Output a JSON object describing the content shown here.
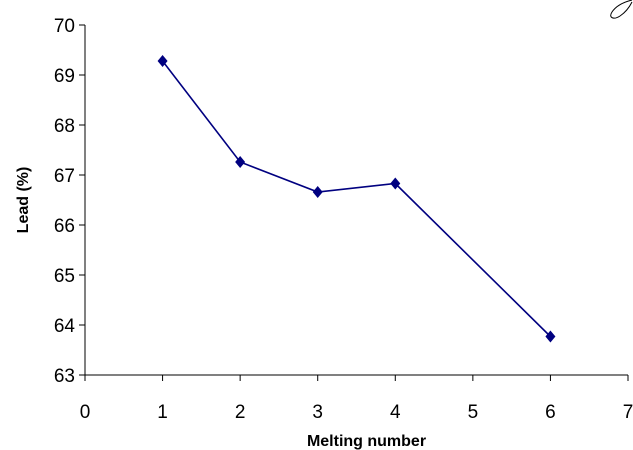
{
  "chart_data": {
    "type": "line",
    "title": "",
    "xlabel": "Melting number",
    "ylabel": "Lead (%)",
    "xlim": [
      0,
      7
    ],
    "ylim": [
      63,
      70
    ],
    "x_ticks": [
      0,
      1,
      2,
      3,
      4,
      5,
      6,
      7
    ],
    "y_ticks": [
      63,
      64,
      65,
      66,
      67,
      68,
      69,
      70
    ],
    "grid": false,
    "legend": "none",
    "marker": "diamond",
    "series": [
      {
        "x": [
          1,
          2,
          3,
          4,
          6
        ],
        "y": [
          69.28,
          67.26,
          66.66,
          66.83,
          63.77
        ],
        "color": "#000080"
      }
    ]
  }
}
